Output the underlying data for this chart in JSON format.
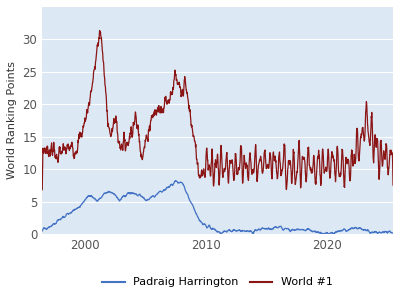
{
  "title": "",
  "ylabel": "World Ranking Points",
  "xlabel": "",
  "plot_bg_color": "#dce9f5",
  "fig_bg_color": "#ffffff",
  "harrington_color": "#4472c4",
  "world1_color": "#8b1515",
  "legend_labels": [
    "Padraig Harrington",
    "World #1"
  ],
  "xlim": [
    1996.5,
    2025.5
  ],
  "ylim": [
    0,
    35
  ],
  "yticks": [
    0,
    5,
    10,
    15,
    20,
    25,
    30
  ],
  "xticks": [
    2000,
    2010,
    2020
  ]
}
